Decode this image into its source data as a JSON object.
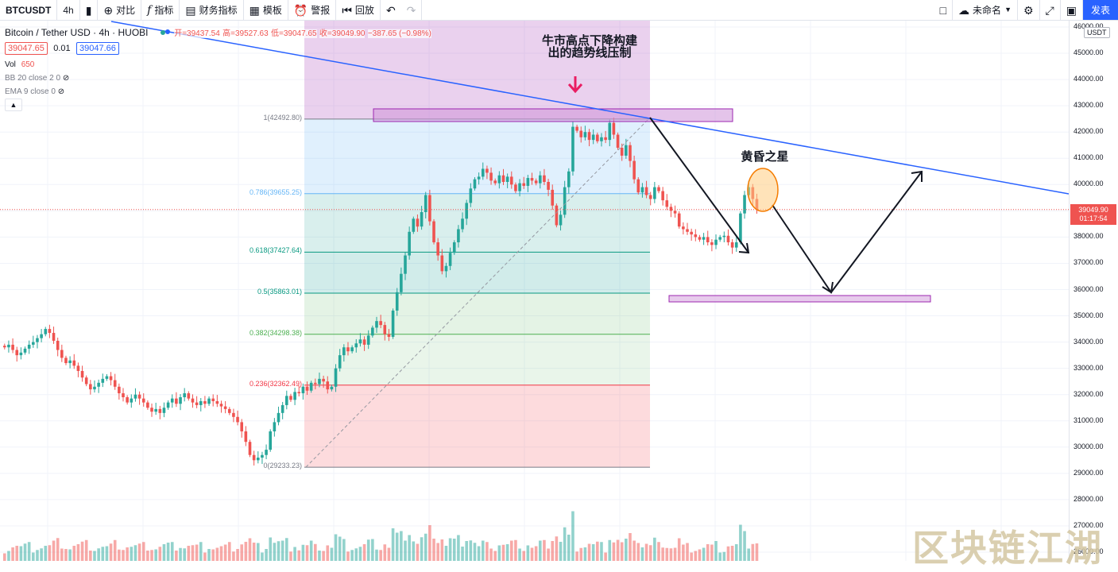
{
  "toolbar": {
    "symbol": "BTCUSDT",
    "interval": "4h",
    "compare": "对比",
    "indicators": "指标",
    "financials": "财务指标",
    "templates": "模板",
    "alert": "警报",
    "replay": "回放",
    "layout_name": "未命名",
    "publish": "发表"
  },
  "legend": {
    "title": "Bitcoin / Tether USD · 4h · HUOBI",
    "open": "开=39437.54",
    "high": "高=39527.63",
    "low": "低=39047.65",
    "close": "收=39049.90",
    "change": "−387.65 (−0.98%)",
    "bid": "39047.65",
    "spread": "0.01",
    "ask": "39047.66",
    "vol_label": "Vol",
    "vol_value": "650",
    "bb": "BB 20 close 2 0",
    "ema": "EMA 9 close 0"
  },
  "colors": {
    "up": "#26a69a",
    "down": "#ef5350",
    "trendline": "#2962ff",
    "accent": "#2962ff"
  },
  "axis": {
    "currency": "USDT",
    "ticks": [
      "46000.00",
      "45000.00",
      "44000.00",
      "43000.00",
      "42000.00",
      "41000.00",
      "40000.00",
      "39000.00",
      "38000.00",
      "37000.00",
      "36000.00",
      "35000.00",
      "34000.00",
      "33000.00",
      "32000.00",
      "31000.00",
      "30000.00",
      "29000.00",
      "28000.00",
      "27000.00",
      "26000.00"
    ],
    "current_price": "39049.90",
    "countdown": "01:17:54"
  },
  "fib_levels": [
    {
      "label": "1(42492.80)",
      "price": 42492.8,
      "color": "#787b86"
    },
    {
      "label": "0.786(39655.25)",
      "price": 39655.25,
      "color": "#64b5f6"
    },
    {
      "label": "0.618(37427.64)",
      "price": 37427.64,
      "color": "#089981"
    },
    {
      "label": "0.5(35863.01)",
      "price": 35863.01,
      "color": "#089981"
    },
    {
      "label": "0.382(34298.38)",
      "price": 34298.38,
      "color": "#4caf50"
    },
    {
      "label": "0.236(32362.49)",
      "price": 32362.49,
      "color": "#f23645"
    },
    {
      "label": "0(29233.23)",
      "price": 29233.23,
      "color": "#787b86"
    }
  ],
  "annotations": {
    "trend_note": "牛市高点下降构建出的趋势线压制",
    "evening_star": "黄昏之星"
  },
  "watermark": "区块链江湖",
  "chart_data": {
    "type": "candlestick",
    "symbol": "BTCUSDT",
    "interval": "4h",
    "ylim": [
      25900,
      46400
    ],
    "close_series": [
      33800,
      33900,
      33700,
      33500,
      33600,
      33750,
      33900,
      34000,
      34150,
      34300,
      34500,
      34350,
      34050,
      33700,
      33400,
      33200,
      33300,
      33100,
      32900,
      32650,
      32400,
      32200,
      32300,
      32450,
      32600,
      32700,
      32550,
      32300,
      32050,
      31900,
      31700,
      31850,
      32000,
      31850,
      31700,
      31500,
      31350,
      31450,
      31300,
      31500,
      31700,
      31850,
      31650,
      31900,
      32050,
      31850,
      31700,
      31600,
      31750,
      31650,
      31850,
      31750,
      31650,
      31550,
      31450,
      31300,
      31150,
      30950,
      30600,
      30200,
      29700,
      29500,
      29600,
      29700,
      29900,
      30600,
      30950,
      31300,
      31600,
      31950,
      31800,
      32100,
      32050,
      32300,
      32150,
      32450,
      32400,
      32600,
      32500,
      32200,
      32300,
      33000,
      33500,
      33800,
      33650,
      33800,
      33950,
      34100,
      33900,
      34250,
      34550,
      34800,
      34650,
      34300,
      34200,
      35200,
      35900,
      36600,
      37300,
      38200,
      38700,
      38400,
      38950,
      39600,
      38600,
      37800,
      37300,
      36700,
      36900,
      37400,
      37800,
      38300,
      38700,
      39300,
      39850,
      40200,
      40300,
      40600,
      40450,
      40150,
      40050,
      40350,
      40100,
      40300,
      40000,
      39750,
      40050,
      39950,
      40250,
      40150,
      40050,
      40350,
      40100,
      39800,
      39200,
      38450,
      38850,
      39900,
      40500,
      42200,
      42050,
      41800,
      42000,
      41700,
      41900,
      41650,
      41800,
      41700,
      42350,
      41900,
      41400,
      41100,
      41500,
      40900,
      40200,
      39700,
      39900,
      39600,
      39450,
      39900,
      39750,
      39400,
      39150,
      39000,
      38900,
      38400,
      38300,
      38200,
      38100,
      38000,
      37900,
      38000,
      37800,
      37700,
      37900,
      38000,
      38050,
      37800,
      37600,
      37800,
      38900,
      39600,
      39900,
      39450,
      39050
    ],
    "volume_note": "volume histogram below price",
    "drawn_objects": [
      "descending trendline from bull market high",
      "fibonacci retracement 29233.23 to 42492.80",
      "resistance box near 42500",
      "support box near 35800",
      "projected path down to ~35900 then up to ~40500",
      "circle on evening star pattern"
    ]
  }
}
